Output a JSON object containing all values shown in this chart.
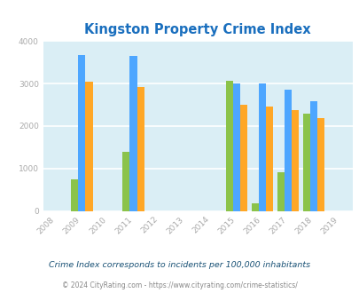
{
  "title": "Kingston Property Crime Index",
  "years": [
    2008,
    2009,
    2010,
    2011,
    2012,
    2013,
    2014,
    2015,
    2016,
    2017,
    2018,
    2019
  ],
  "data_years": [
    2009,
    2011,
    2015,
    2016,
    2017,
    2018
  ],
  "kingston": [
    750,
    1400,
    3060,
    175,
    920,
    2300
  ],
  "georgia": [
    3680,
    3640,
    3010,
    3010,
    2860,
    2590
  ],
  "national": [
    3040,
    2920,
    2500,
    2460,
    2380,
    2180
  ],
  "kingston_color": "#8bc34a",
  "georgia_color": "#4da6ff",
  "national_color": "#ffa726",
  "bg_color": "#daeef5",
  "grid_color": "#ffffff",
  "title_color": "#1a6fbe",
  "axis_label_color": "#aaaaaa",
  "legend_text_color": "#333333",
  "subtitle_color": "#1a5276",
  "footer_color": "#888888",
  "footer_link_color": "#2980b9",
  "subtitle": "Crime Index corresponds to incidents per 100,000 inhabitants",
  "footer": "© 2024 CityRating.com - https://www.cityrating.com/crime-statistics/",
  "ylim": [
    0,
    4000
  ],
  "yticks": [
    0,
    1000,
    2000,
    3000,
    4000
  ],
  "bar_width": 0.28
}
